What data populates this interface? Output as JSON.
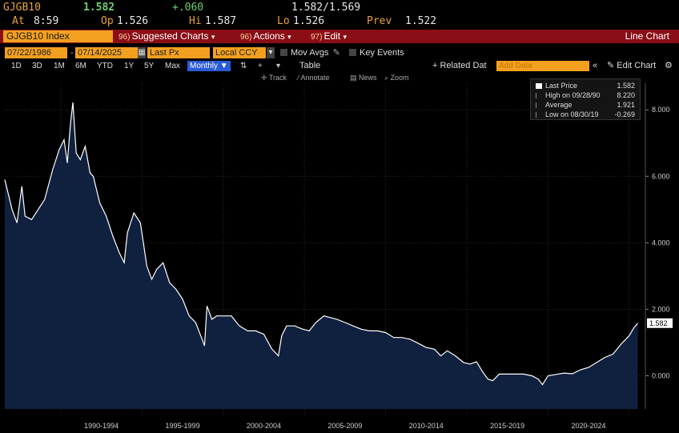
{
  "quote": {
    "ticker": "GJGB10",
    "last": "1.582",
    "change": "+.060",
    "bid_ask": "1.582/1.569",
    "at_label": "At",
    "at_time": "8:59",
    "op_label": "Op",
    "op_value": "1.526",
    "hi_label": "Hi",
    "hi_value": "1.587",
    "lo_label": "Lo",
    "lo_value": "1.526",
    "prev_label": "Prev",
    "prev_value": "1.522"
  },
  "toolbar": {
    "security": "GJGB10 Index",
    "suggested_num": "96)",
    "suggested": "Suggested Charts",
    "actions_num": "96)",
    "actions": "Actions",
    "edit_num": "97)",
    "edit": "Edit",
    "chart_type": "Line Chart",
    "dropdown_glyph": "▾"
  },
  "settings": {
    "start_date": "07/22/1986",
    "date_sep": "-",
    "end_date": "07/14/2025",
    "field": "Last Px",
    "currency": "Local CCY",
    "mov_avgs": "Mov Avgs",
    "key_events": "Key Events"
  },
  "periods": {
    "items": [
      "1D",
      "3D",
      "1M",
      "6M",
      "YTD",
      "1Y",
      "5Y",
      "Max"
    ],
    "frequency": "Monthly",
    "table_label": "Table",
    "related": "+ Related Dat",
    "add_data_placeholder": "Add Data",
    "edit_chart": "Edit Chart"
  },
  "tools": {
    "track": "Track",
    "annotate": "Annotate",
    "news": "News",
    "zoom": "Zoom"
  },
  "legend": {
    "last_price_label": "Last Price",
    "last_price_value": "1.582",
    "high_label": "High on 09/28/90",
    "high_value": "8.220",
    "average_label": "Average",
    "average_value": "1.921",
    "low_label": "Low on 08/30/19",
    "low_value": "-0.269"
  },
  "colors": {
    "background": "#000000",
    "area_fill": "#10213f",
    "line": "#ffffff",
    "toolbar_red": "#8a0e16",
    "field_orange": "#f3a020",
    "accent_blue": "#2a5bd7"
  },
  "chart_data": {
    "type": "area",
    "series": [
      {
        "name": "Last Price",
        "x": [
          1986.55,
          1987.0,
          1987.3,
          1987.6,
          1987.8,
          1988.2,
          1988.6,
          1989.0,
          1989.5,
          1989.9,
          1990.2,
          1990.4,
          1990.6,
          1990.74,
          1990.95,
          1991.2,
          1991.5,
          1991.8,
          1992.0,
          1992.4,
          1992.8,
          1993.2,
          1993.6,
          1993.9,
          1994.1,
          1994.5,
          1994.9,
          1995.3,
          1995.6,
          1995.9,
          1996.3,
          1996.7,
          1997.1,
          1997.5,
          1997.9,
          1998.3,
          1998.7,
          1998.85,
          1999.0,
          1999.3,
          1999.6,
          2000.0,
          2000.5,
          2001.0,
          2001.5,
          2002.0,
          2002.5,
          2003.0,
          2003.4,
          2003.6,
          2003.9,
          2004.4,
          2004.9,
          2005.3,
          2005.7,
          2006.2,
          2006.6,
          2007.0,
          2007.5,
          2008.0,
          2008.5,
          2009.0,
          2009.5,
          2010.0,
          2010.5,
          2011.0,
          2011.5,
          2012.0,
          2012.5,
          2013.0,
          2013.4,
          2013.8,
          2014.3,
          2014.8,
          2015.2,
          2015.6,
          2016.0,
          2016.3,
          2016.6,
          2017.0,
          2017.5,
          2018.0,
          2018.5,
          2019.0,
          2019.4,
          2019.66,
          2020.0,
          2020.5,
          2021.0,
          2021.5,
          2022.0,
          2022.5,
          2023.0,
          2023.5,
          2024.0,
          2024.5,
          2025.0,
          2025.3,
          2025.53
        ],
        "y": [
          5.9,
          5.0,
          4.6,
          5.7,
          4.8,
          4.7,
          5.0,
          5.3,
          6.2,
          6.8,
          7.1,
          6.4,
          7.6,
          8.22,
          6.7,
          6.5,
          6.9,
          6.1,
          6.0,
          5.2,
          4.8,
          4.2,
          3.7,
          3.4,
          4.3,
          4.9,
          4.6,
          3.3,
          2.9,
          3.2,
          3.4,
          2.8,
          2.6,
          2.3,
          1.8,
          1.6,
          1.1,
          0.9,
          2.1,
          1.7,
          1.8,
          1.8,
          1.8,
          1.5,
          1.35,
          1.35,
          1.25,
          0.8,
          0.6,
          1.2,
          1.5,
          1.5,
          1.4,
          1.35,
          1.6,
          1.8,
          1.75,
          1.7,
          1.6,
          1.5,
          1.4,
          1.35,
          1.35,
          1.3,
          1.15,
          1.15,
          1.1,
          0.98,
          0.85,
          0.8,
          0.6,
          0.75,
          0.6,
          0.4,
          0.35,
          0.42,
          0.1,
          -0.1,
          -0.15,
          0.05,
          0.05,
          0.05,
          0.05,
          0.0,
          -0.1,
          -0.269,
          0.0,
          0.04,
          0.08,
          0.06,
          0.18,
          0.25,
          0.4,
          0.55,
          0.65,
          0.95,
          1.2,
          1.45,
          1.582
        ]
      }
    ],
    "xlim": [
      1986.55,
      1025.0
    ],
    "ylim": [
      -1.0,
      8.8
    ],
    "yticks": [
      0,
      2,
      4,
      6,
      8
    ],
    "ytick_labels": [
      "0.000",
      "2.000",
      "4.000",
      "6.000",
      "8.000"
    ],
    "xtick_labels": [
      "1990-1994",
      "1995-1999",
      "2000-2004",
      "2005-2009",
      "2010-2014",
      "2015-2019",
      "2020-2024"
    ],
    "xtick_centers": [
      1992.5,
      1997.5,
      2002.5,
      2007.5,
      2012.5,
      2017.5,
      2022.5
    ],
    "last_value_label": "1.582",
    "grid": true,
    "legend_position": "top-right"
  }
}
